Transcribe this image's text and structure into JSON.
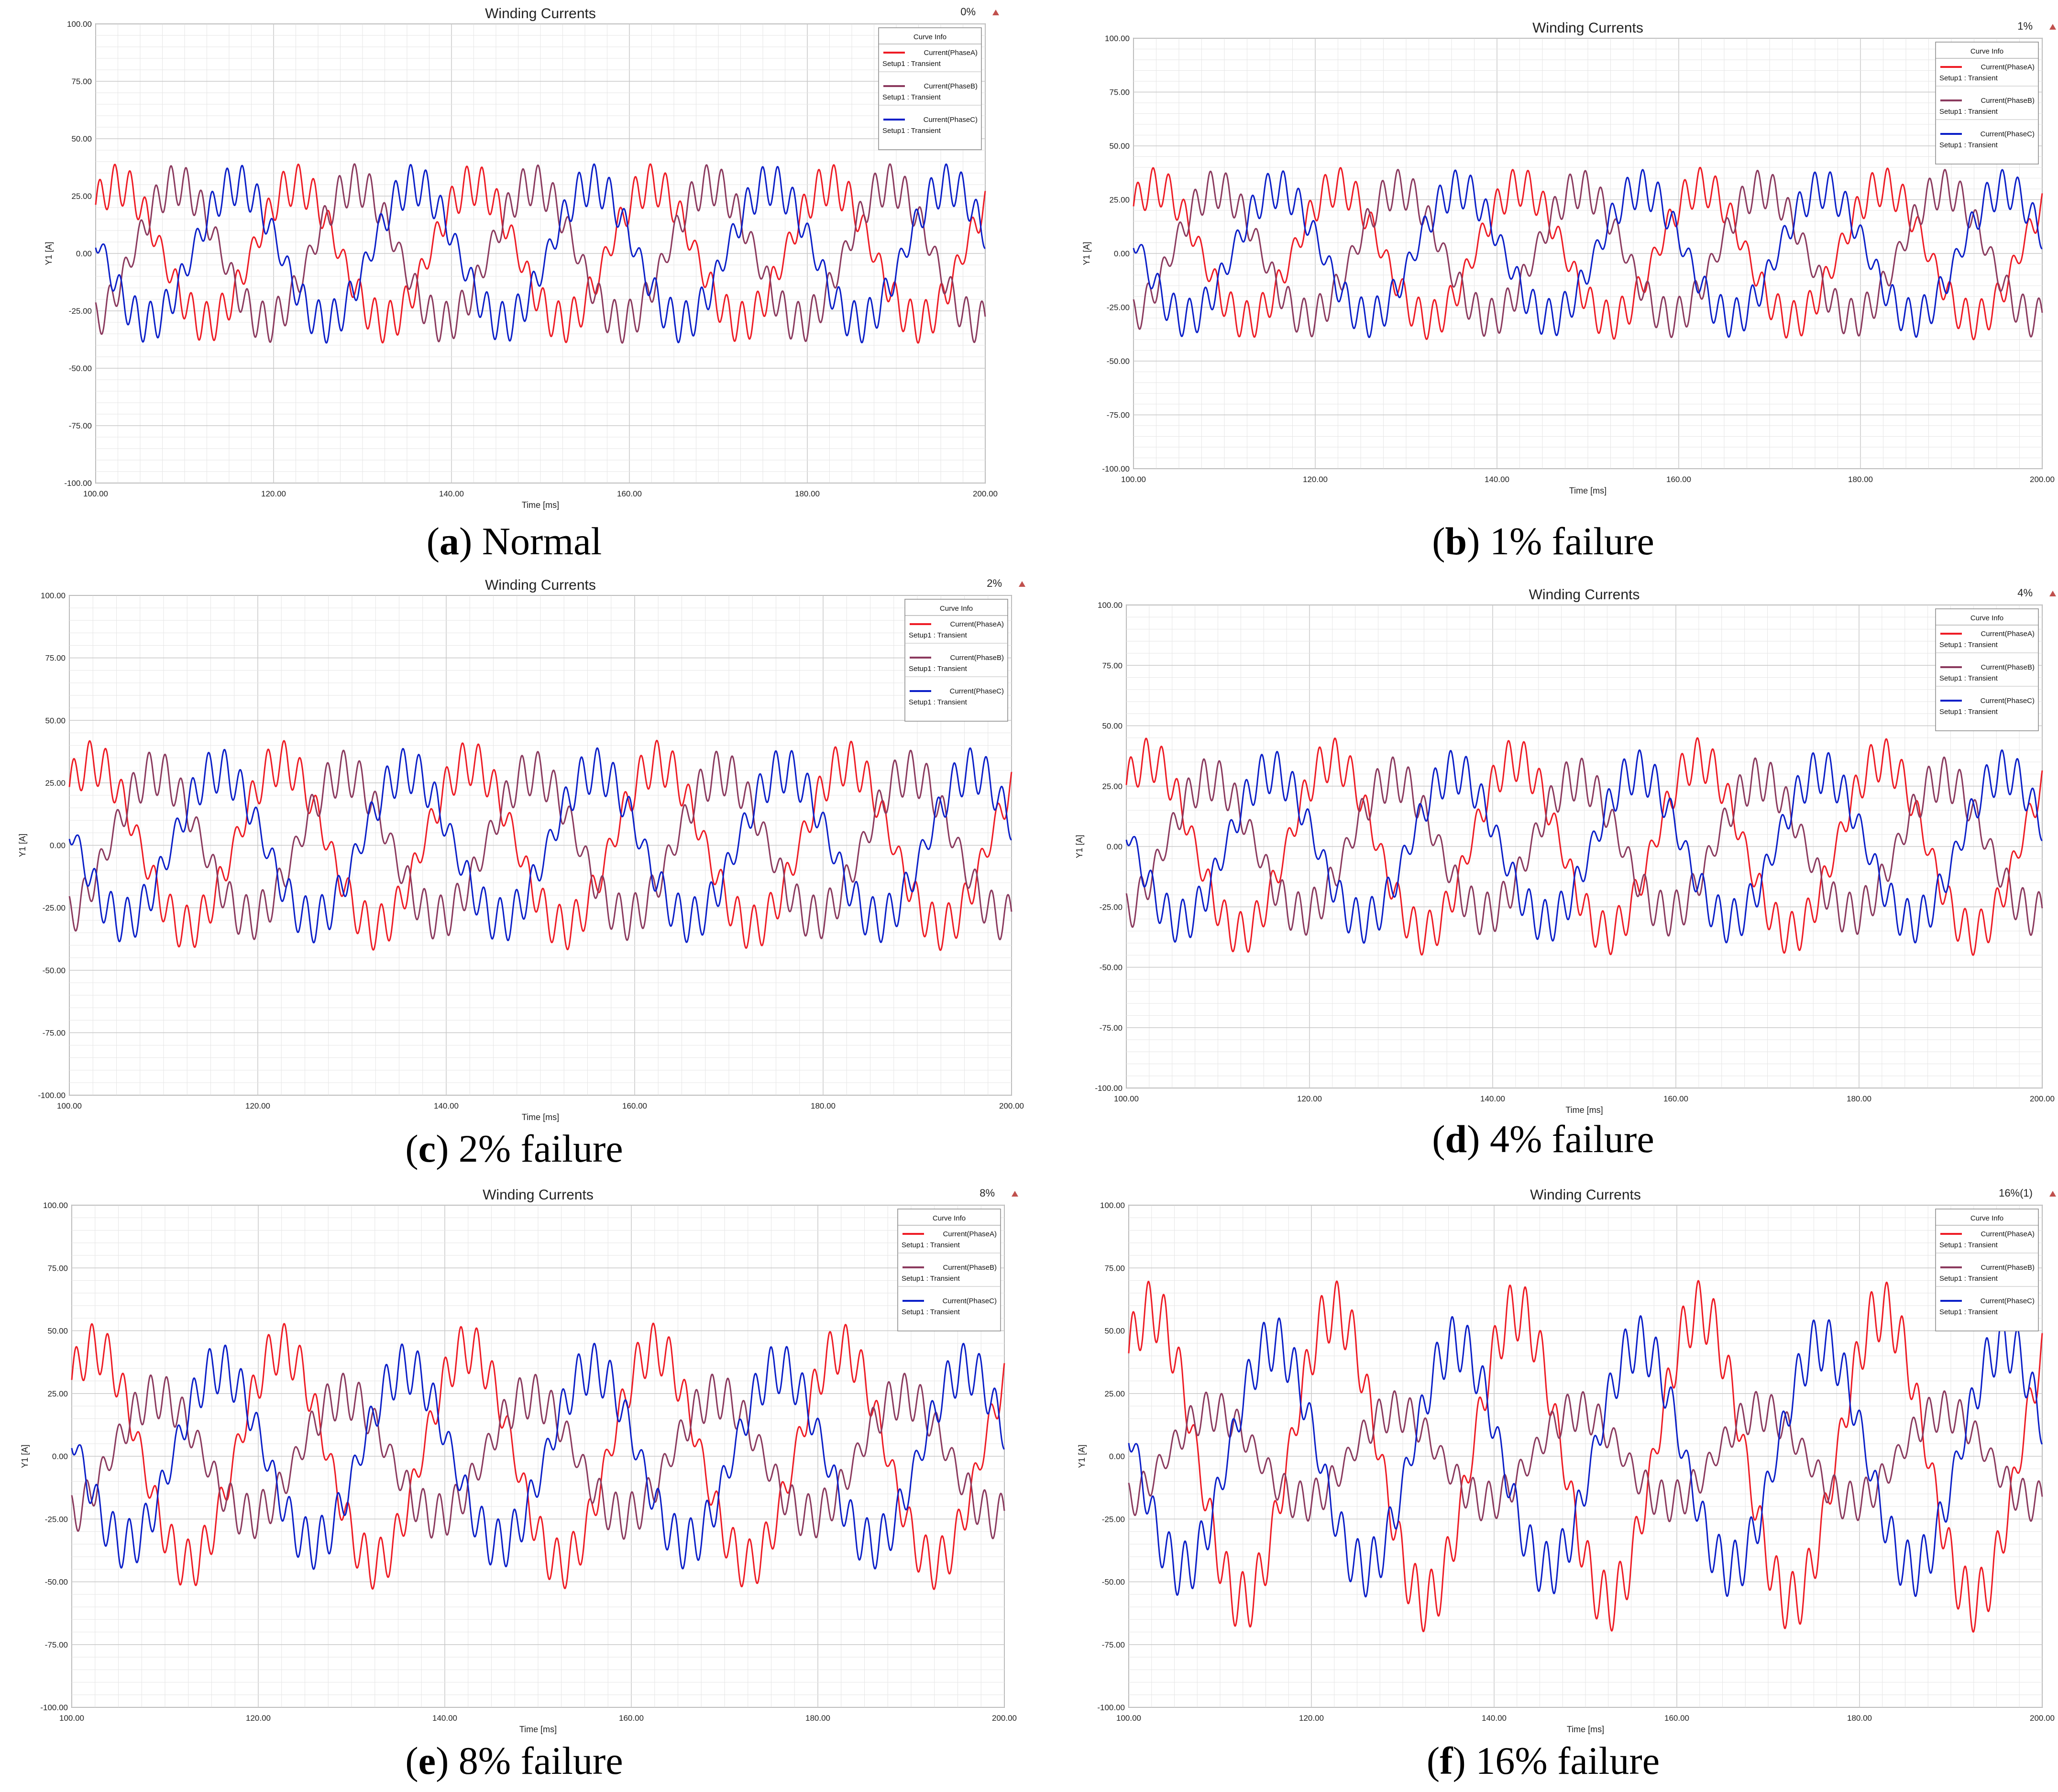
{
  "chart_data": [
    {
      "type": "line",
      "panel": "a",
      "title": "Winding Currents",
      "tag": "0%",
      "caption_letter": "a",
      "caption_text": " Normal",
      "xlabel": "Time [ms]",
      "ylabel": "Y1 [A]",
      "xlim": [
        100,
        200
      ],
      "ylim": [
        -100,
        100
      ],
      "xticks": [
        "100.00",
        "120.00",
        "140.00",
        "160.00",
        "180.00",
        "200.00"
      ],
      "yticks": [
        "100.00",
        "75.00",
        "50.00",
        "25.00",
        "0.00",
        "-25.00",
        "-50.00",
        "-75.00",
        "-100.00"
      ],
      "legend_title": "Curve Info",
      "legend_sub": "Setup1 : Transient",
      "series": [
        {
          "name": "Current(PhaseA)",
          "color": "#ee1c25",
          "amplitude": 30,
          "ripple": 9,
          "phase_deg": 45
        },
        {
          "name": "Current(PhaseB)",
          "color": "#8b3a5e",
          "amplitude": 30,
          "ripple": 9,
          "phase_deg": -75
        },
        {
          "name": "Current(PhaseC)",
          "color": "#0b1fc8",
          "amplitude": 30,
          "ripple": 9,
          "phase_deg": 165
        }
      ]
    },
    {
      "type": "line",
      "panel": "b",
      "title": "Winding Currents",
      "tag": "1%",
      "caption_letter": "b",
      "caption_text": ") 1% failure",
      "xlabel": "Time [ms]",
      "ylabel": "Y1 [A]",
      "xlim": [
        100,
        200
      ],
      "ylim": [
        -100,
        100
      ],
      "xticks": [
        "100.00",
        "120.00",
        "140.00",
        "160.00",
        "180.00",
        "200.00"
      ],
      "yticks": [
        "100.00",
        "75.00",
        "50.00",
        "25.00",
        "0.00",
        "-25.00",
        "-50.00",
        "-75.00",
        "-100.00"
      ],
      "legend_title": "Curve Info",
      "legend_sub": "Setup1 : Transient",
      "series": [
        {
          "name": "Current(PhaseA)",
          "color": "#ee1c25",
          "amplitude": 31,
          "ripple": 9,
          "phase_deg": 45
        },
        {
          "name": "Current(PhaseB)",
          "color": "#8b3a5e",
          "amplitude": 30,
          "ripple": 9,
          "phase_deg": -75
        },
        {
          "name": "Current(PhaseC)",
          "color": "#0b1fc8",
          "amplitude": 30,
          "ripple": 9,
          "phase_deg": 165
        }
      ]
    },
    {
      "type": "line",
      "panel": "c",
      "title": "Winding Currents",
      "tag": "2%",
      "caption_letter": "c",
      "caption_text": ") 2% failure",
      "xlabel": "Time [ms]",
      "ylabel": "Y1 [A]",
      "xlim": [
        100,
        200
      ],
      "ylim": [
        -100,
        100
      ],
      "xticks": [
        "100.00",
        "120.00",
        "140.00",
        "160.00",
        "180.00",
        "200.00"
      ],
      "yticks": [
        "100.00",
        "75.00",
        "50.00",
        "25.00",
        "0.00",
        "-25.00",
        "-50.00",
        "-75.00",
        "-100.00"
      ],
      "legend_title": "Curve Info",
      "legend_sub": "Setup1 : Transient",
      "series": [
        {
          "name": "Current(PhaseA)",
          "color": "#ee1c25",
          "amplitude": 33,
          "ripple": 9,
          "phase_deg": 45
        },
        {
          "name": "Current(PhaseB)",
          "color": "#8b3a5e",
          "amplitude": 29,
          "ripple": 9,
          "phase_deg": -75
        },
        {
          "name": "Current(PhaseC)",
          "color": "#0b1fc8",
          "amplitude": 30,
          "ripple": 9,
          "phase_deg": 165
        }
      ]
    },
    {
      "type": "line",
      "panel": "d",
      "title": "Winding Currents",
      "tag": "4%",
      "caption_letter": "d",
      "caption_text": ") 4% failure",
      "xlabel": "Time [ms]",
      "ylabel": "Y1 [A]",
      "xlim": [
        100,
        200
      ],
      "ylim": [
        -100,
        100
      ],
      "xticks": [
        "100.00",
        "120.00",
        "140.00",
        "160.00",
        "180.00",
        "200.00"
      ],
      "yticks": [
        "100.00",
        "75.00",
        "50.00",
        "25.00",
        "0.00",
        "-25.00",
        "-50.00",
        "-75.00",
        "-100.00"
      ],
      "legend_title": "Curve Info",
      "legend_sub": "Setup1 : Transient",
      "series": [
        {
          "name": "Current(PhaseA)",
          "color": "#ee1c25",
          "amplitude": 36,
          "ripple": 9,
          "phase_deg": 45
        },
        {
          "name": "Current(PhaseB)",
          "color": "#8b3a5e",
          "amplitude": 28,
          "ripple": 9,
          "phase_deg": -75
        },
        {
          "name": "Current(PhaseC)",
          "color": "#0b1fc8",
          "amplitude": 31,
          "ripple": 9,
          "phase_deg": 165
        }
      ]
    },
    {
      "type": "line",
      "panel": "e",
      "title": "Winding Currents",
      "tag": "8%",
      "caption_letter": "e",
      "caption_text": ") 8% failure",
      "xlabel": "Time [ms]",
      "ylabel": "Y1 [A]",
      "xlim": [
        100,
        200
      ],
      "ylim": [
        -100,
        100
      ],
      "xticks": [
        "100.00",
        "120.00",
        "140.00",
        "160.00",
        "180.00",
        "200.00"
      ],
      "yticks": [
        "100.00",
        "75.00",
        "50.00",
        "25.00",
        "0.00",
        "-25.00",
        "-50.00",
        "-75.00",
        "-100.00"
      ],
      "legend_title": "Curve Info",
      "legend_sub": "Setup1 : Transient",
      "series": [
        {
          "name": "Current(PhaseA)",
          "color": "#ee1c25",
          "amplitude": 43,
          "ripple": 10,
          "phase_deg": 45
        },
        {
          "name": "Current(PhaseB)",
          "color": "#8b3a5e",
          "amplitude": 24,
          "ripple": 9,
          "phase_deg": -75
        },
        {
          "name": "Current(PhaseC)",
          "color": "#0b1fc8",
          "amplitude": 35,
          "ripple": 10,
          "phase_deg": 165
        }
      ]
    },
    {
      "type": "line",
      "panel": "f",
      "title": "Winding Currents",
      "tag": "16%(1)",
      "caption_letter": "f",
      "caption_text": ") 16% failure",
      "xlabel": "Time [ms]",
      "ylabel": "Y1 [A]",
      "xlim": [
        100,
        200
      ],
      "ylim": [
        -100,
        100
      ],
      "xticks": [
        "100.00",
        "120.00",
        "140.00",
        "160.00",
        "180.00",
        "200.00"
      ],
      "yticks": [
        "100.00",
        "75.00",
        "50.00",
        "25.00",
        "0.00",
        "-25.00",
        "-50.00",
        "-75.00",
        "-100.00"
      ],
      "legend_title": "Curve Info",
      "legend_sub": "Setup1 : Transient",
      "series": [
        {
          "name": "Current(PhaseA)",
          "color": "#ee1c25",
          "amplitude": 58,
          "ripple": 12,
          "phase_deg": 45
        },
        {
          "name": "Current(PhaseB)",
          "color": "#8b3a5e",
          "amplitude": 18,
          "ripple": 8,
          "phase_deg": -75
        },
        {
          "name": "Current(PhaseC)",
          "color": "#0b1fc8",
          "amplitude": 45,
          "ripple": 11,
          "phase_deg": 165
        }
      ]
    }
  ]
}
